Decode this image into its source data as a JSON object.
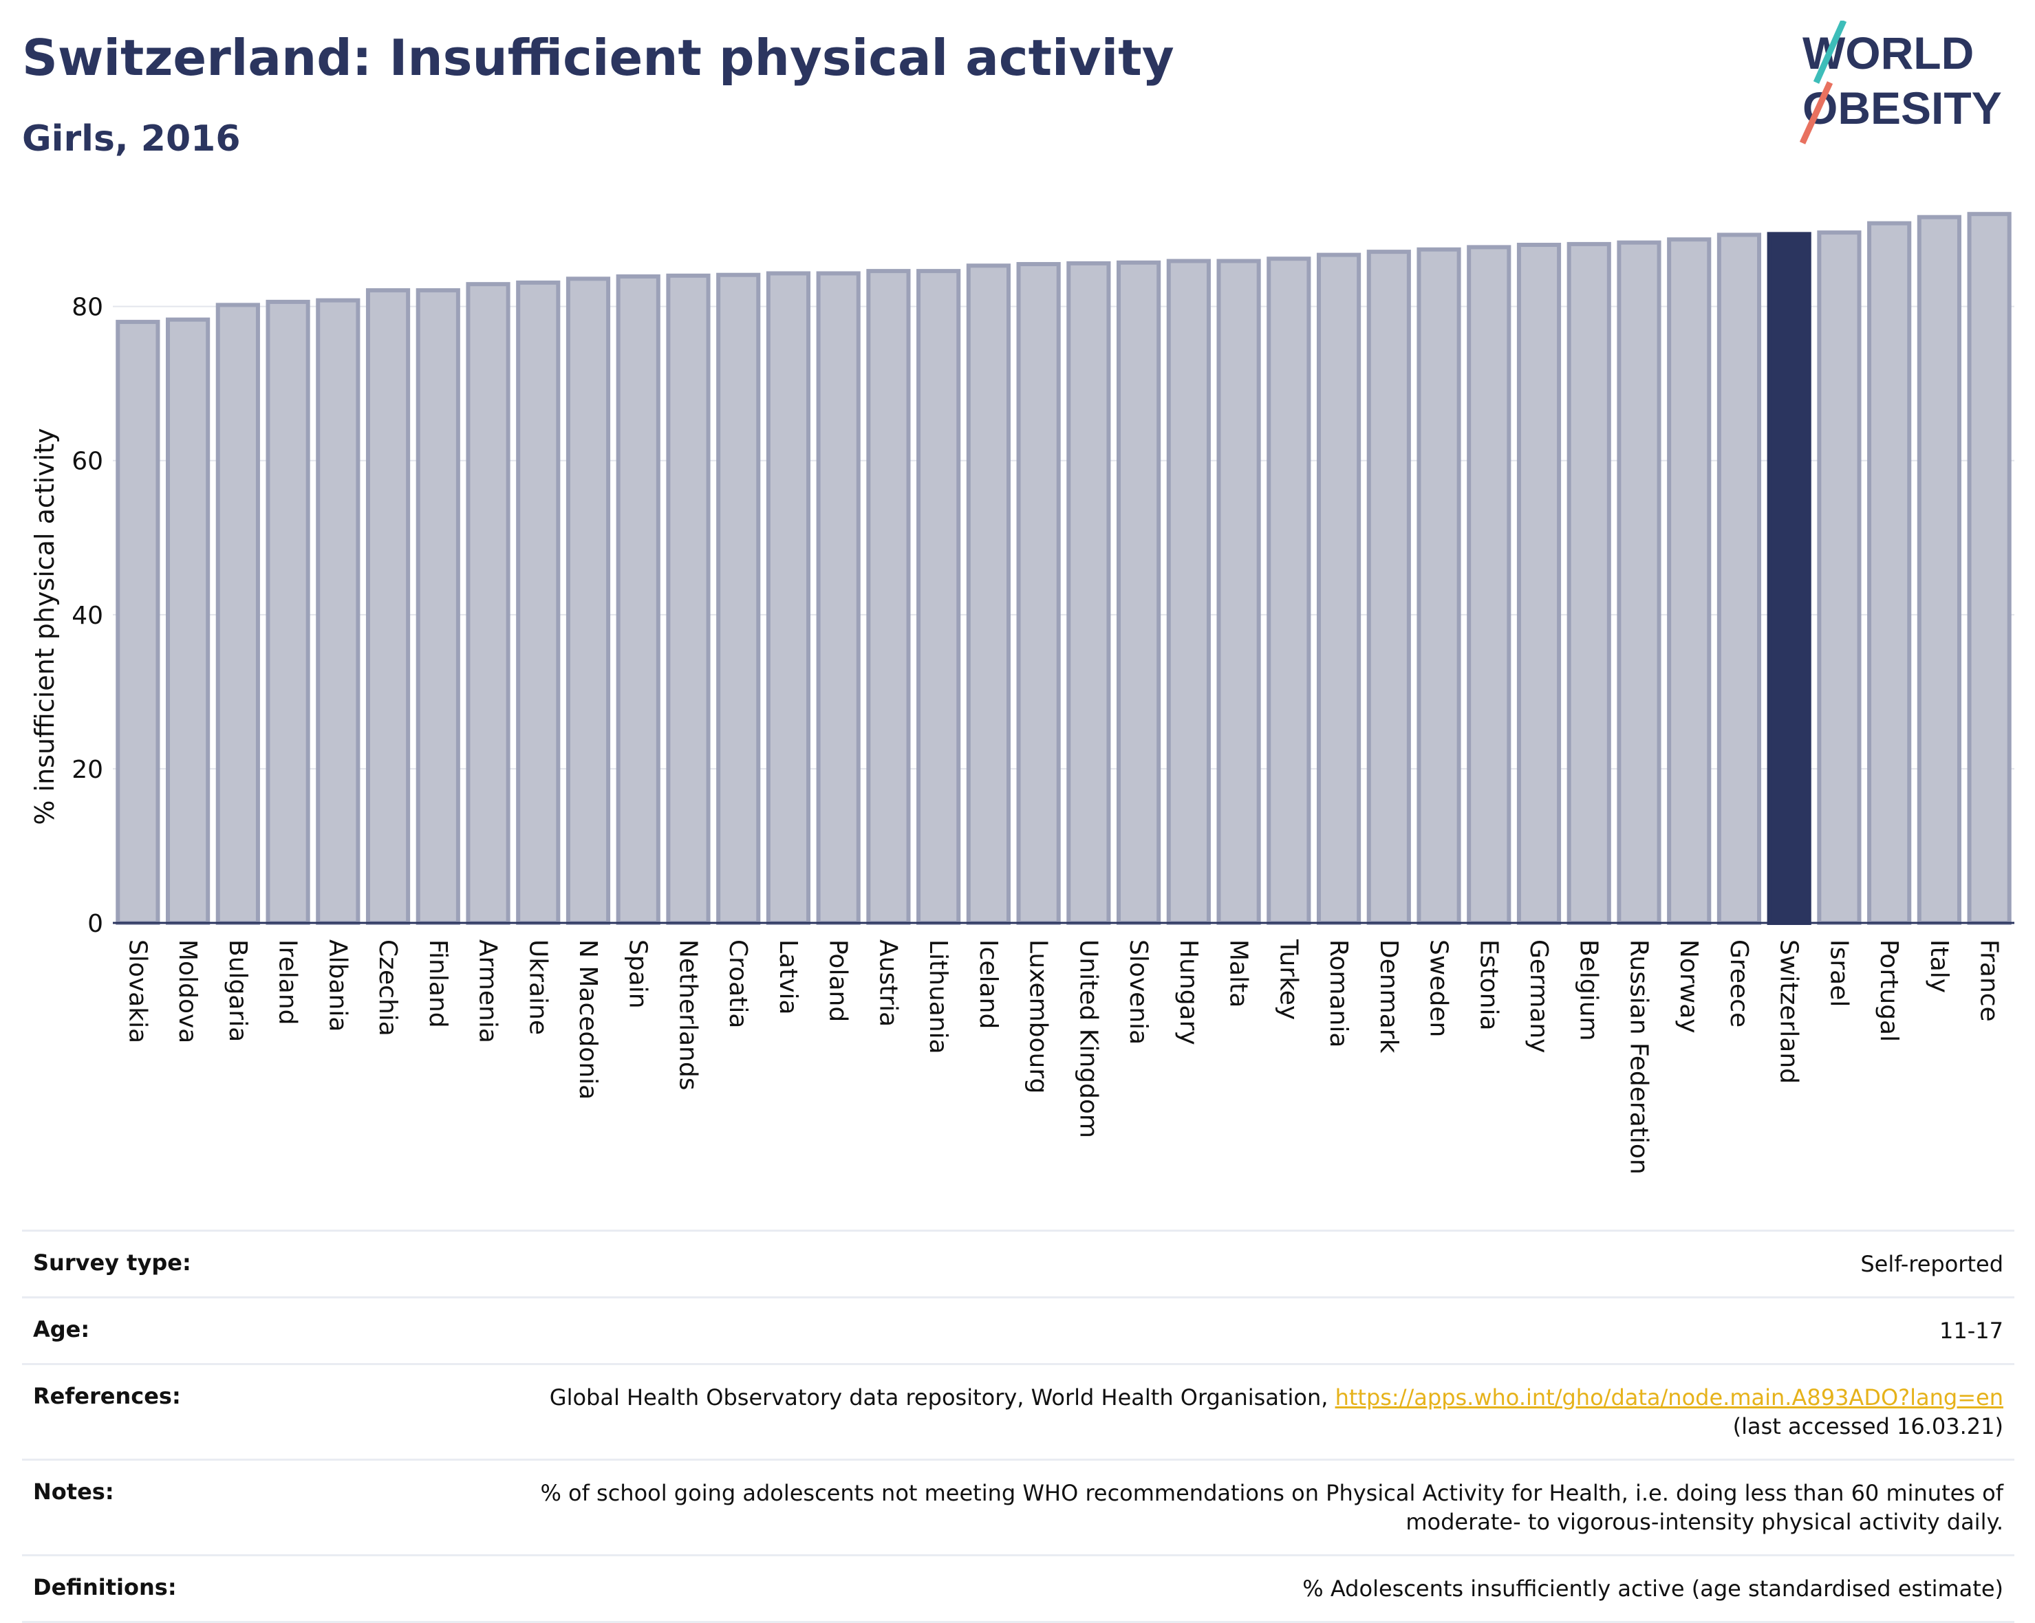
{
  "header": {
    "title": "Switzerland: Insufficient physical activity",
    "subtitle": "Girls, 2016"
  },
  "logo": {
    "line1": "WORLD",
    "line2": "OBESITY"
  },
  "colors": {
    "highlight": "#2b355f",
    "bar": "#bfc2cf",
    "bar_border": "#9ca1b8",
    "title": "#2b355f",
    "logo_teal": "#3dbdb9",
    "logo_coral": "#e8715f",
    "link": "#e6b21a"
  },
  "chart_data": {
    "type": "bar",
    "title": "Switzerland: Insufficient physical activity",
    "subtitle": "Girls, 2016",
    "xlabel": "",
    "ylabel": "% insufficient physical activity",
    "ylim": [
      0,
      93
    ],
    "yticks": [
      0,
      20,
      40,
      60,
      80
    ],
    "grid": true,
    "highlight": "Switzerland",
    "categories": [
      "Slovakia",
      "Moldova",
      "Bulgaria",
      "Ireland",
      "Albania",
      "Czechia",
      "Finland",
      "Armenia",
      "Ukraine",
      "N Macedonia",
      "Spain",
      "Netherlands",
      "Croatia",
      "Latvia",
      "Poland",
      "Austria",
      "Lithuania",
      "Iceland",
      "Luxembourg",
      "United Kingdom",
      "Slovenia",
      "Hungary",
      "Malta",
      "Turkey",
      "Romania",
      "Denmark",
      "Sweden",
      "Estonia",
      "Germany",
      "Belgium",
      "Russian Federation",
      "Norway",
      "Greece",
      "Switzerland",
      "Israel",
      "Portugal",
      "Italy",
      "France"
    ],
    "values": [
      78.0,
      78.3,
      80.2,
      80.6,
      80.8,
      82.1,
      82.1,
      82.9,
      83.1,
      83.6,
      83.9,
      84.0,
      84.1,
      84.3,
      84.3,
      84.6,
      84.6,
      85.3,
      85.5,
      85.6,
      85.7,
      85.9,
      85.9,
      86.2,
      86.7,
      87.1,
      87.4,
      87.7,
      88.0,
      88.1,
      88.3,
      88.7,
      89.3,
      89.4,
      89.6,
      90.8,
      91.6,
      92.0
    ]
  },
  "info": {
    "survey_type": {
      "label": "Survey type:",
      "value": "Self-reported"
    },
    "age": {
      "label": "Age:",
      "value": "11-17"
    },
    "references": {
      "label": "References:",
      "text": "Global Health Observatory data repository, World Health Organisation, ",
      "link": "https://apps.who.int/gho/data/node.main.A893ADO?lang=en",
      "accessed": "(last accessed 16.03.21)"
    },
    "notes": {
      "label": "Notes:",
      "line1": "% of school going adolescents not meeting WHO recommendations on Physical Activity for Health, i.e. doing less than 60 minutes of",
      "line2": "moderate- to vigorous-intensity physical activity daily."
    },
    "definitions": {
      "label": "Definitions:",
      "value": "% Adolescents insufficiently active (age standardised estimate)"
    }
  }
}
